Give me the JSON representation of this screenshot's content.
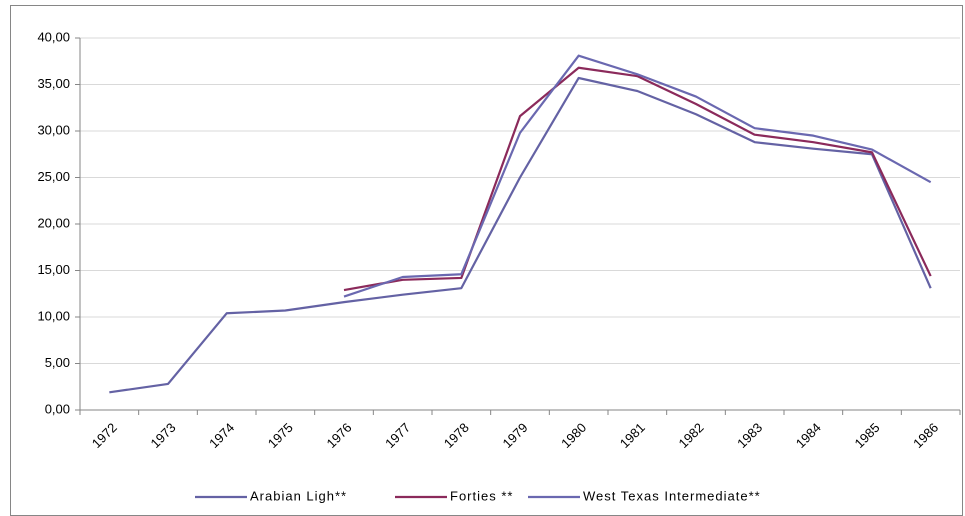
{
  "chart_data": {
    "type": "line",
    "categories": [
      "1972",
      "1973",
      "1974",
      "1975",
      "1976",
      "1977",
      "1978",
      "1979",
      "1980",
      "1981",
      "1982",
      "1983",
      "1984",
      "1985",
      "1986"
    ],
    "series": [
      {
        "name": "Arabian Ligh**",
        "color": "#6462a4",
        "values": [
          1.9,
          2.8,
          10.4,
          10.7,
          11.6,
          12.4,
          13.1,
          25.0,
          35.7,
          34.3,
          31.8,
          28.8,
          28.1,
          27.5,
          13.1
        ]
      },
      {
        "name": "Forties **",
        "color": "#8b2a5b",
        "values": [
          null,
          null,
          null,
          null,
          12.9,
          14.0,
          14.2,
          31.6,
          36.8,
          35.9,
          32.9,
          29.6,
          28.8,
          27.7,
          14.4
        ]
      },
      {
        "name": "West Texas  Intermediate**",
        "color": "#6a68b0",
        "values": [
          null,
          null,
          null,
          null,
          12.2,
          14.3,
          14.6,
          29.8,
          38.1,
          36.1,
          33.7,
          30.3,
          29.5,
          28.0,
          24.5
        ]
      }
    ],
    "ylim": [
      0,
      40
    ],
    "yticks": [
      {
        "value": 0,
        "label": "0,00"
      },
      {
        "value": 5,
        "label": "5,00"
      },
      {
        "value": 10,
        "label": "10,00"
      },
      {
        "value": 15,
        "label": "15,00"
      },
      {
        "value": 20,
        "label": "20,00"
      },
      {
        "value": 25,
        "label": "25,00"
      },
      {
        "value": 30,
        "label": "30,00"
      },
      {
        "value": 35,
        "label": "35,00"
      },
      {
        "value": 40,
        "label": "40,00"
      }
    ],
    "grid": true,
    "legend": "bottom"
  }
}
